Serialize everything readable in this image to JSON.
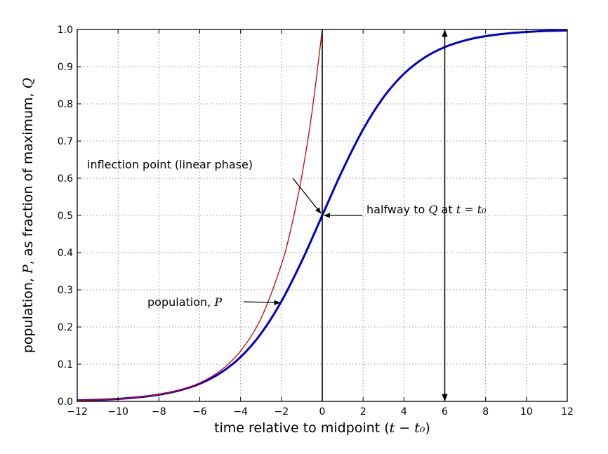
{
  "chart_data": {
    "type": "line",
    "xlabel": {
      "prefix": "time relative to midpoint (",
      "math": "t − t₀",
      "suffix": ")"
    },
    "ylabel": {
      "prefix": "population, ",
      "math_p": "P",
      "middle": ", as fraction of maximum, ",
      "math_q": "Q"
    },
    "xlim": [
      -12,
      12
    ],
    "ylim": [
      0,
      1
    ],
    "xticks": [
      "−12",
      "−10",
      "−8",
      "−6",
      "−4",
      "−2",
      "0",
      "2",
      "4",
      "6",
      "8",
      "10",
      "12"
    ],
    "yticks": [
      "0.0",
      "0.1",
      "0.2",
      "0.3",
      "0.4",
      "0.5",
      "0.6",
      "0.7",
      "0.8",
      "0.9",
      "1.0"
    ],
    "grid": true,
    "series": [
      {
        "color": "#0000cc",
        "x": [
          -12,
          -11,
          -10,
          -9,
          -8,
          -7,
          -6,
          -5,
          -4,
          -3,
          -2,
          -1,
          0,
          1,
          2,
          3,
          4,
          5,
          6,
          7,
          8,
          9,
          10,
          11,
          12
        ],
        "y": [
          0.0025,
          0.0041,
          0.0067,
          0.011,
          0.018,
          0.0293,
          0.0474,
          0.0759,
          0.1192,
          0.1824,
          0.2689,
          0.3775,
          0.5,
          0.6225,
          0.7311,
          0.8176,
          0.8808,
          0.9241,
          0.9526,
          0.9707,
          0.982,
          0.989,
          0.9933,
          0.9959,
          0.9975
        ]
      },
      {
        "color": "#cc0000",
        "x": [
          -12,
          -11,
          -10,
          -9,
          -8,
          -7,
          -6,
          -5,
          -4,
          -3,
          -2,
          -1.5,
          -1,
          -0.5,
          0
        ],
        "y": [
          0.0025,
          0.0041,
          0.0067,
          0.0111,
          0.0183,
          0.0302,
          0.0498,
          0.0821,
          0.1353,
          0.2231,
          0.3679,
          0.4724,
          0.6065,
          0.7788,
          1.0
        ]
      }
    ],
    "vline_x": 0,
    "annotations": [
      {
        "text": "inflection point (linear phase)",
        "x": 0,
        "y": 0.5
      },
      {
        "text_prefix": "halfway to ",
        "math_q": "Q",
        "text_mid": " at ",
        "math_eq": "t = t₀",
        "x": 0,
        "y": 0.5
      },
      {
        "text_prefix": "population, ",
        "math_p": "P",
        "x": -2,
        "y": 0.2689
      },
      {
        "text": "",
        "x": 6,
        "y_top": 1.0,
        "y_bottom": 0.0
      }
    ]
  }
}
